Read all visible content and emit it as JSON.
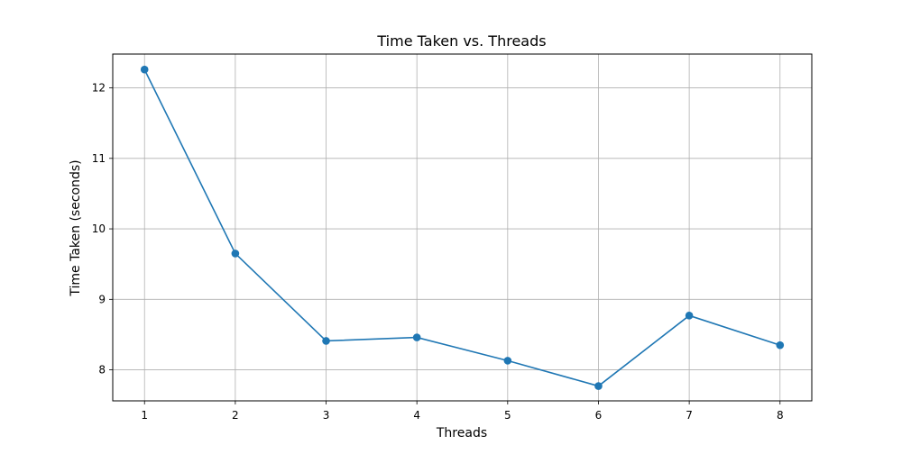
{
  "chart_data": {
    "type": "line",
    "title": "Time Taken vs. Threads",
    "xlabel": "Threads",
    "ylabel": "Time Taken (seconds)",
    "x": [
      1,
      2,
      3,
      4,
      5,
      6,
      7,
      8
    ],
    "series": [
      {
        "values": [
          12.26,
          9.65,
          8.41,
          8.46,
          8.13,
          7.77,
          8.77,
          8.35
        ]
      }
    ],
    "xlim": [
      0.65,
      8.35
    ],
    "ylim": [
      7.56,
      12.48
    ],
    "xticks": [
      "1",
      "2",
      "3",
      "4",
      "5",
      "6",
      "7",
      "8"
    ],
    "yticks": [
      "8",
      "9",
      "10",
      "11",
      "12"
    ],
    "grid": true,
    "marker": "circle",
    "color": "#1f77b4"
  }
}
